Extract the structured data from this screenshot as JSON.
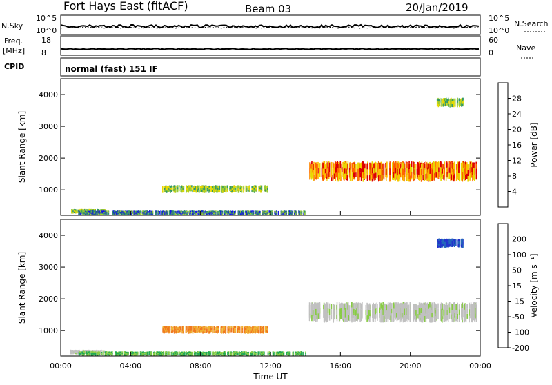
{
  "header": {
    "station": "Fort Hays East (fitACF)",
    "beam": "Beam 03",
    "date": "20/Jan/2019"
  },
  "status": {
    "nsky_label": "N.Sky",
    "nsky_ticks": [
      "10^5",
      "10^0"
    ],
    "nsearch_label": "N.Search",
    "nsearch_ticks": [
      "10^5",
      "10^0"
    ],
    "freq_label": "Freq.",
    "freq_unit": "[MHz]",
    "freq_ticks": [
      "18",
      "8"
    ],
    "nave_label": "Nave",
    "nave_ticks": [
      "60",
      "0"
    ],
    "cpid_label": "CPID",
    "cpid_value": "normal (fast) 151 IF"
  },
  "chart_data": [
    {
      "type": "heatmap",
      "title": "",
      "xlabel": "Time UT",
      "ylabel": "Slant Range [km]",
      "ylim": [
        200,
        4500
      ],
      "xlim": [
        0,
        24
      ],
      "xticks": [
        "00:00",
        "04:00",
        "08:00",
        "12:00",
        "16:00",
        "20:00",
        "00:00"
      ],
      "yticks": [
        1000,
        2000,
        3000,
        4000
      ],
      "colorbar": {
        "label": "Power [dB]",
        "ticks": [
          "28",
          "24",
          "20",
          "16",
          "12",
          "8",
          "4"
        ],
        "colors": [
          "#dd0000",
          "#ff6600",
          "#ffbb00",
          "#e8d800",
          "#99cc33",
          "#339966",
          "#225599",
          "#1111ee"
        ]
      },
      "echo_regions": [
        {
          "t0": 14.2,
          "t1": 23.8,
          "r0": 1250,
          "r1": 1900,
          "level": "high"
        },
        {
          "t0": 21.5,
          "t1": 23.0,
          "r0": 3600,
          "r1": 3900,
          "level": "mid"
        },
        {
          "t0": 5.8,
          "t1": 11.8,
          "r0": 900,
          "r1": 1150,
          "level": "mid"
        },
        {
          "t0": 0.5,
          "t1": 2.5,
          "r0": 250,
          "r1": 400,
          "level": "mid"
        },
        {
          "t0": 1.0,
          "t1": 14.0,
          "r0": 200,
          "r1": 350,
          "level": "low"
        }
      ]
    },
    {
      "type": "heatmap",
      "title": "",
      "xlabel": "Time UT",
      "ylabel": "Slant Range [km]",
      "ylim": [
        200,
        4500
      ],
      "xlim": [
        0,
        24
      ],
      "xticks": [
        "00:00",
        "04:00",
        "08:00",
        "12:00",
        "16:00",
        "20:00",
        "00:00"
      ],
      "yticks": [
        1000,
        2000,
        3000,
        4000
      ],
      "colorbar": {
        "label": "Velocity [m s⁻¹]",
        "ticks": [
          "200",
          "100",
          "50",
          "15",
          "-15",
          "-50",
          "-100",
          "-200"
        ],
        "colors": [
          "#2233cc",
          "#2266bb",
          "#22aa55",
          "#88cc44",
          "#c0c0c0",
          "#f0b030",
          "#f07820",
          "#ee2200"
        ]
      },
      "echo_regions": [
        {
          "t0": 14.2,
          "t1": 23.8,
          "r0": 1250,
          "r1": 1900,
          "level": "ground"
        },
        {
          "t0": 21.5,
          "t1": 23.0,
          "r0": 3600,
          "r1": 3900,
          "level": "toward"
        },
        {
          "t0": 5.8,
          "t1": 11.8,
          "r0": 900,
          "r1": 1150,
          "level": "away"
        },
        {
          "t0": 0.5,
          "t1": 2.5,
          "r0": 250,
          "r1": 400,
          "level": "ground"
        },
        {
          "t0": 1.0,
          "t1": 14.0,
          "r0": 200,
          "r1": 350,
          "level": "slow"
        }
      ]
    }
  ]
}
